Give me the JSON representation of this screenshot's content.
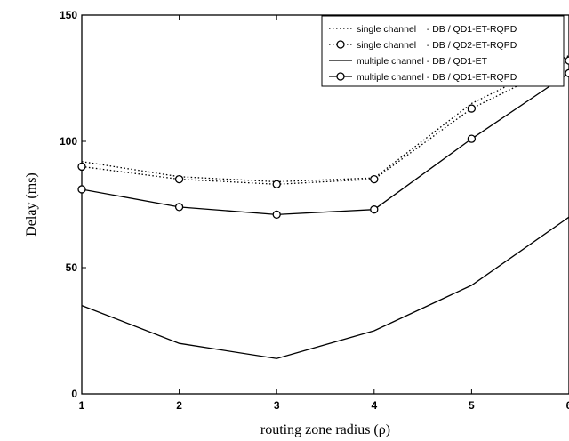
{
  "chart_data": {
    "type": "line",
    "xlabel": "routing zone radius  (ρ)",
    "ylabel": "Delay  (ms)",
    "x": [
      1,
      2,
      3,
      4,
      5,
      6
    ],
    "xlim": [
      1,
      6
    ],
    "ylim": [
      0,
      150
    ],
    "xticks": [
      "1",
      "2",
      "3",
      "4",
      "5",
      "6"
    ],
    "yticks": [
      "0",
      "50",
      "100",
      "150"
    ],
    "grid": false,
    "legend_position": "top-right",
    "series": [
      {
        "name": "single channel    - DB / QD1-ET-RQPD",
        "style": "dotted",
        "marker": "none",
        "color": "#000000",
        "values": [
          92,
          86,
          84,
          85.5,
          115,
          134
        ]
      },
      {
        "name": "single channel    - DB / QD2-ET-RQPD",
        "style": "dotted",
        "marker": "circle",
        "color": "#000000",
        "values": [
          90,
          85,
          83,
          85,
          113,
          132
        ]
      },
      {
        "name": "multiple channel - DB / QD1-ET",
        "style": "solid",
        "marker": "none",
        "color": "#000000",
        "values": [
          35,
          20,
          14,
          25,
          43,
          70
        ]
      },
      {
        "name": "multiple channel - DB / QD1-ET-RQPD",
        "style": "solid",
        "marker": "circle",
        "color": "#000000",
        "values": [
          81,
          74,
          71,
          73,
          101,
          127
        ]
      }
    ]
  }
}
